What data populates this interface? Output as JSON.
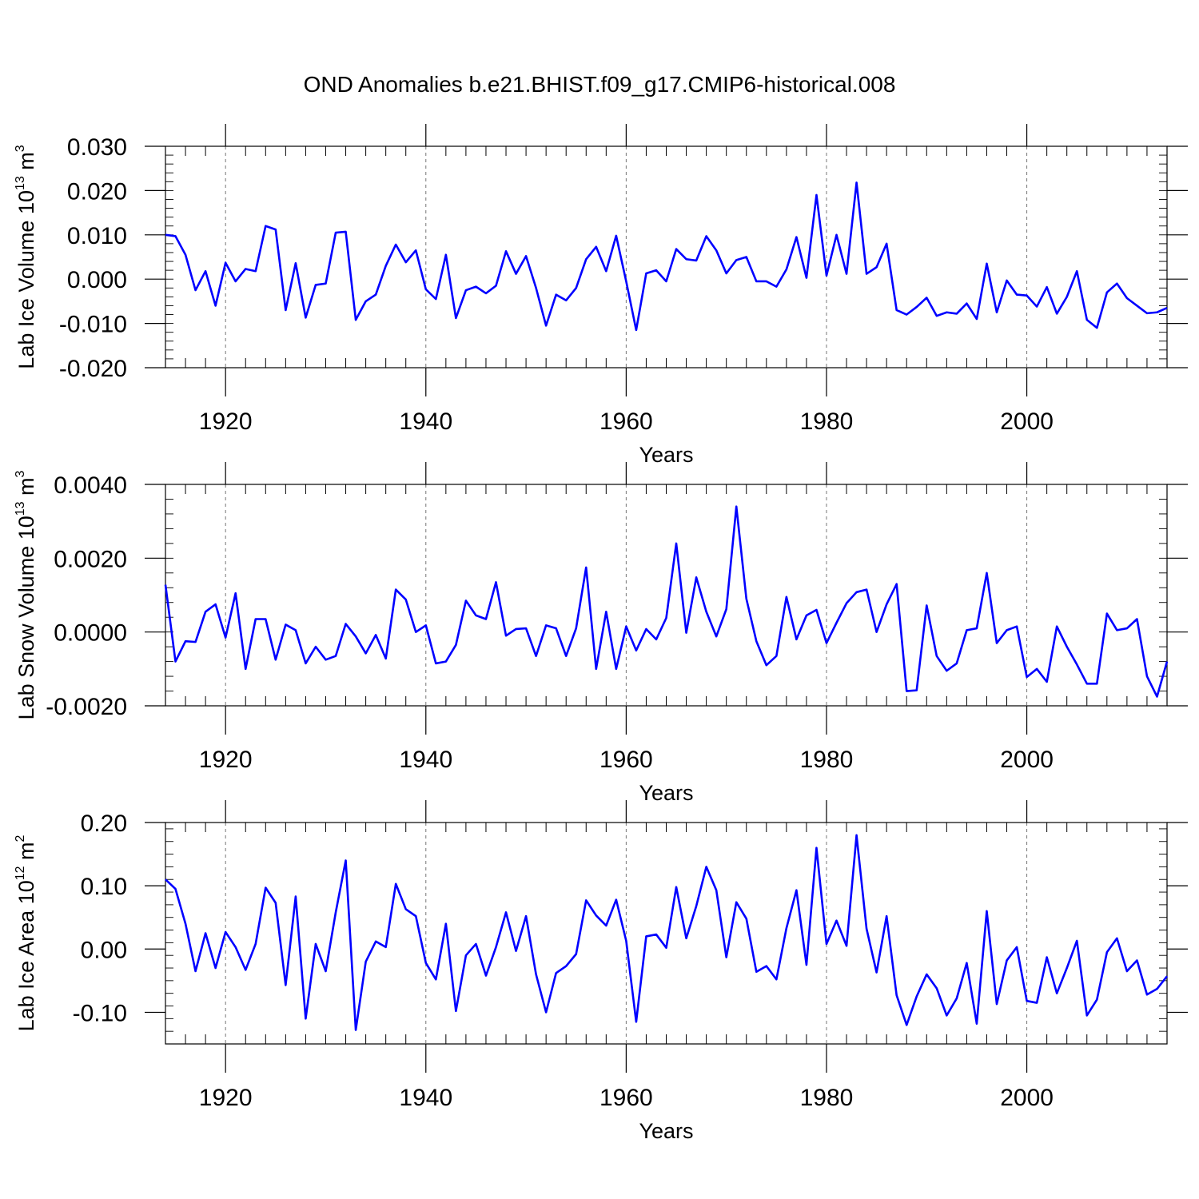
{
  "title": "OND Anomalies b.e21.BHIST.f09_g17.CMIP6-historical.008",
  "chart_data": [
    {
      "type": "line",
      "name": "ice-volume",
      "title": "",
      "xlabel": "Years",
      "ylabel_main": "Lab Ice Volume 10",
      "ylabel_exp": "13",
      "ylabel_unit": " m",
      "ylabel_unit_exp": "3",
      "xlim": [
        1914,
        2014
      ],
      "ylim": [
        -0.02,
        0.03
      ],
      "xticks": [
        1920,
        1940,
        1960,
        1980,
        2000
      ],
      "yticks": [
        -0.02,
        -0.01,
        0.0,
        0.01,
        0.02,
        0.03
      ],
      "ytick_labels": [
        "-0.020",
        "-0.010",
        "0.000",
        "0.010",
        "0.020",
        "0.030"
      ],
      "x_start": 1914,
      "series": [
        {
          "name": "Lab Ice Volume",
          "color": "#0000ff",
          "values": [
            0.01,
            0.0097,
            0.0055,
            -0.0025,
            0.0018,
            -0.006,
            0.0037,
            -0.0005,
            0.0023,
            0.0018,
            0.012,
            0.0112,
            -0.007,
            0.0036,
            -0.0087,
            -0.0013,
            -0.001,
            0.0105,
            0.0107,
            -0.0092,
            -0.005,
            -0.0035,
            0.003,
            0.0078,
            0.0038,
            0.0065,
            -0.0023,
            -0.0045,
            0.0055,
            -0.0088,
            -0.0025,
            -0.0017,
            -0.0032,
            -0.0015,
            0.0063,
            0.0012,
            0.0052,
            -0.002,
            -0.0105,
            -0.0035,
            -0.0048,
            -0.002,
            0.0045,
            0.0073,
            0.0018,
            0.0098,
            -0.0005,
            -0.0115,
            0.0013,
            0.002,
            -0.0005,
            0.0068,
            0.0045,
            0.0042,
            0.0097,
            0.0065,
            0.0013,
            0.0043,
            0.005,
            -0.0005,
            -0.0005,
            -0.0017,
            0.0022,
            0.0095,
            0.0003,
            0.019,
            0.0008,
            0.01,
            0.0012,
            0.0218,
            0.0012,
            0.0027,
            0.008,
            -0.007,
            -0.008,
            -0.0063,
            -0.0042,
            -0.0083,
            -0.0075,
            -0.0078,
            -0.0055,
            -0.009,
            0.0035,
            -0.0075,
            -0.0003,
            -0.0035,
            -0.0037,
            -0.0062,
            -0.0018,
            -0.0078,
            -0.004,
            0.0018,
            -0.0092,
            -0.011,
            -0.003,
            -0.001,
            -0.0043,
            -0.006,
            -0.0077,
            -0.0075,
            -0.0065
          ]
        }
      ]
    },
    {
      "type": "line",
      "name": "snow-volume",
      "title": "",
      "xlabel": "Years",
      "ylabel_main": "Lab Snow Volume 10",
      "ylabel_exp": "13",
      "ylabel_unit": " m",
      "ylabel_unit_exp": "3",
      "xlim": [
        1914,
        2014
      ],
      "ylim": [
        -0.002,
        0.004
      ],
      "xticks": [
        1920,
        1940,
        1960,
        1980,
        2000
      ],
      "yticks": [
        -0.002,
        0.0,
        0.002,
        0.004
      ],
      "ytick_labels": [
        "-0.0020",
        "0.0000",
        "0.0020",
        "0.0040"
      ],
      "x_start": 1914,
      "series": [
        {
          "name": "Lab Snow Volume",
          "color": "#0000ff",
          "values": [
            0.00128,
            -0.0008,
            -0.00025,
            -0.00027,
            0.00055,
            0.00075,
            -0.00015,
            0.00105,
            -0.001,
            0.00035,
            0.00035,
            -0.00075,
            0.0002,
            5e-05,
            -0.00085,
            -0.0004,
            -0.00075,
            -0.00065,
            0.00022,
            -0.00012,
            -0.00058,
            -8e-05,
            -0.00072,
            0.00115,
            0.00088,
            0.0,
            0.00018,
            -0.00085,
            -0.0008,
            -0.00035,
            0.00085,
            0.00045,
            0.00035,
            0.00135,
            -0.0001,
            8e-05,
            0.0001,
            -0.00065,
            0.00018,
            0.0001,
            -0.00065,
            0.0001,
            0.00175,
            -0.001,
            0.00055,
            -0.001,
            0.00015,
            -0.0005,
            8e-05,
            -0.0002,
            0.00038,
            0.0024,
            -2e-05,
            0.00148,
            0.00055,
            -0.00012,
            0.00062,
            0.0034,
            0.0009,
            -0.00025,
            -0.0009,
            -0.00065,
            0.00095,
            -0.0002,
            0.00045,
            0.0006,
            -0.0003,
            0.00025,
            0.00078,
            0.00108,
            0.00115,
            0.0,
            0.00075,
            0.0013,
            -0.0016,
            -0.00158,
            0.00072,
            -0.00065,
            -0.00105,
            -0.00085,
            5e-05,
            0.0001,
            0.0016,
            -0.0003,
            5e-05,
            0.00015,
            -0.00122,
            -0.001,
            -0.00135,
            0.00015,
            -0.0004,
            -0.00088,
            -0.0014,
            -0.0014,
            0.0005,
            5e-05,
            0.0001,
            0.00035,
            -0.0012,
            -0.00175,
            -0.0008
          ]
        }
      ]
    },
    {
      "type": "line",
      "name": "ice-area",
      "title": "",
      "xlabel": "Years",
      "ylabel_main": "Lab Ice Area 10",
      "ylabel_exp": "12",
      "ylabel_unit": " m",
      "ylabel_unit_exp": "2",
      "xlim": [
        1914,
        2014
      ],
      "ylim": [
        -0.15,
        0.2
      ],
      "xticks": [
        1920,
        1940,
        1960,
        1980,
        2000
      ],
      "yticks": [
        -0.1,
        0.0,
        0.1,
        0.2
      ],
      "ytick_labels": [
        "-0.10",
        "0.00",
        "0.10",
        "0.20"
      ],
      "x_start": 1914,
      "series": [
        {
          "name": "Lab Ice Area",
          "color": "#0000ff",
          "values": [
            0.11,
            0.095,
            0.04,
            -0.035,
            0.025,
            -0.03,
            0.027,
            0.003,
            -0.033,
            0.008,
            0.097,
            0.073,
            -0.057,
            0.083,
            -0.11,
            0.008,
            -0.035,
            0.058,
            0.14,
            -0.128,
            -0.02,
            0.012,
            0.003,
            0.103,
            0.063,
            0.052,
            -0.022,
            -0.048,
            0.04,
            -0.098,
            -0.01,
            0.008,
            -0.042,
            0.003,
            0.058,
            -0.003,
            0.052,
            -0.04,
            -0.1,
            -0.038,
            -0.027,
            -0.008,
            0.077,
            0.053,
            0.037,
            0.078,
            0.013,
            -0.115,
            0.02,
            0.023,
            0.002,
            0.098,
            0.017,
            0.068,
            0.13,
            0.093,
            -0.013,
            0.074,
            0.048,
            -0.036,
            -0.027,
            -0.048,
            0.033,
            0.093,
            -0.025,
            0.16,
            0.008,
            0.045,
            0.005,
            0.18,
            0.032,
            -0.037,
            0.052,
            -0.073,
            -0.12,
            -0.075,
            -0.04,
            -0.062,
            -0.105,
            -0.078,
            -0.022,
            -0.118,
            0.06,
            -0.087,
            -0.018,
            0.003,
            -0.082,
            -0.085,
            -0.013,
            -0.07,
            -0.03,
            0.013,
            -0.105,
            -0.08,
            -0.005,
            0.017,
            -0.035,
            -0.018,
            -0.072,
            -0.063,
            -0.043
          ]
        }
      ]
    }
  ]
}
